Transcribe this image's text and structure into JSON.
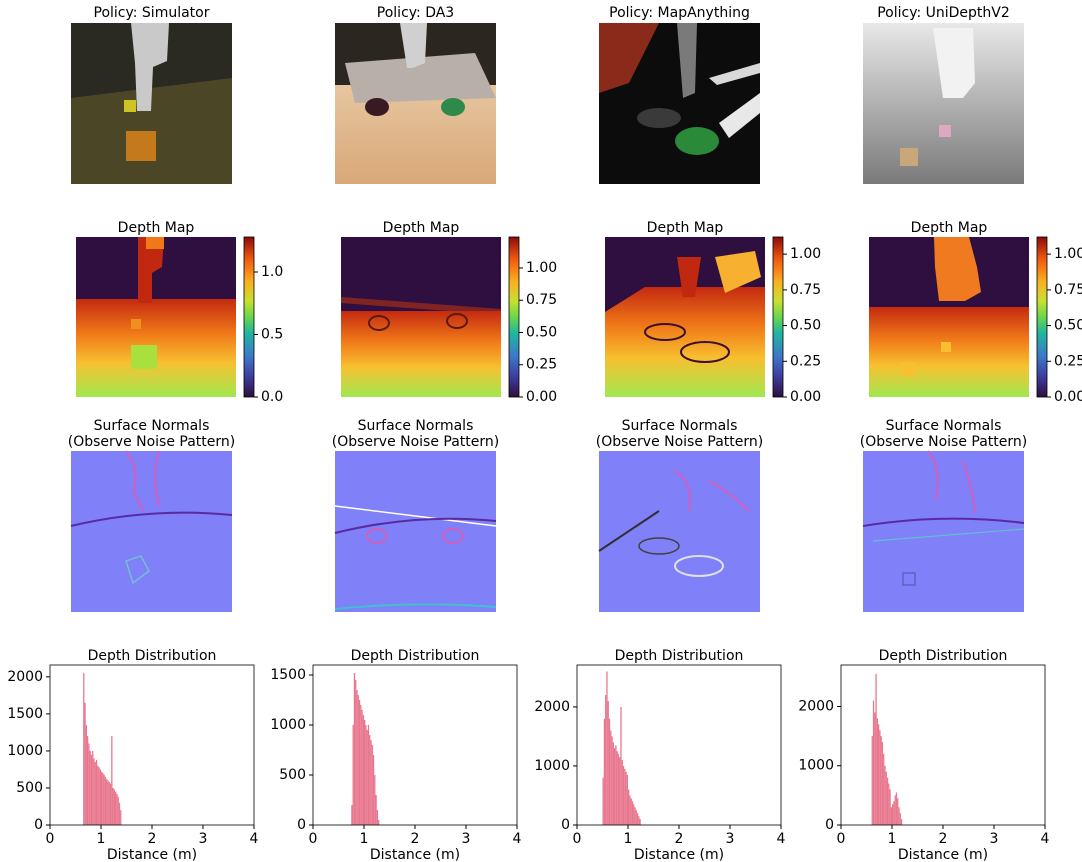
{
  "panels": [
    {
      "photo_title": "Policy: Simulator",
      "depth_title": "Depth Map",
      "normals_title": "Surface Normals",
      "normals_subtitle": "(Observe Noise Pattern)",
      "colorbar": {
        "lim": [
          0,
          1.28
        ],
        "ticks": [
          {
            "value": 0,
            "label": "0.0"
          },
          {
            "value": 0.5,
            "label": "0.5"
          },
          {
            "value": 1,
            "label": "1.0"
          }
        ]
      }
    },
    {
      "photo_title": "Policy: DA3",
      "depth_title": "Depth Map",
      "normals_title": "Surface Normals",
      "normals_subtitle": "(Observe Noise Pattern)",
      "colorbar": {
        "lim": [
          0,
          1.24
        ],
        "ticks": [
          {
            "value": 0,
            "label": "0.00"
          },
          {
            "value": 0.25,
            "label": "0.25"
          },
          {
            "value": 0.5,
            "label": "0.50"
          },
          {
            "value": 0.75,
            "label": "0.75"
          },
          {
            "value": 1,
            "label": "1.00"
          }
        ]
      }
    },
    {
      "photo_title": "Policy: MapAnything",
      "depth_title": "Depth Map",
      "normals_title": "Surface Normals",
      "normals_subtitle": "(Observe Noise Pattern)",
      "colorbar": {
        "lim": [
          0,
          1.12
        ],
        "ticks": [
          {
            "value": 0,
            "label": "0.00"
          },
          {
            "value": 0.25,
            "label": "0.25"
          },
          {
            "value": 0.5,
            "label": "0.50"
          },
          {
            "value": 0.75,
            "label": "0.75"
          },
          {
            "value": 1,
            "label": "1.00"
          }
        ]
      }
    },
    {
      "photo_title": "Policy: UniDepthV2",
      "depth_title": "Depth Map",
      "normals_title": "Surface Normals",
      "normals_subtitle": "(Observe Noise Pattern)",
      "colorbar": {
        "lim": [
          0,
          1.12
        ],
        "ticks": [
          {
            "value": 0,
            "label": "0.00"
          },
          {
            "value": 0.25,
            "label": "0.25"
          },
          {
            "value": 0.5,
            "label": "0.50"
          },
          {
            "value": 0.75,
            "label": "0.75"
          },
          {
            "value": 1,
            "label": "1.00"
          }
        ]
      }
    }
  ],
  "chart_data": [
    {
      "type": "histogram",
      "title": "Depth Distribution",
      "x_label": "Distance (m)",
      "color": "#e8768d",
      "bins": [
        0.65,
        0.675,
        0.7,
        0.725,
        0.75,
        0.775,
        0.8,
        0.825,
        0.85,
        0.875,
        0.9,
        0.925,
        0.95,
        0.975,
        1.0,
        1.025,
        1.05,
        1.075,
        1.1,
        1.125,
        1.15,
        1.175,
        1.2,
        1.225,
        1.25,
        1.275,
        1.3,
        1.325,
        1.35,
        1.375,
        1.4
      ],
      "values": [
        2050,
        1650,
        1350,
        1200,
        1100,
        1000,
        950,
        1000,
        900,
        850,
        880,
        800,
        780,
        750,
        720,
        700,
        680,
        650,
        620,
        600,
        580,
        560,
        1200,
        500,
        480,
        450,
        420,
        380,
        300,
        200
      ],
      "xlim": [
        0,
        4
      ],
      "xticks": [
        0,
        1,
        2,
        3,
        4
      ],
      "ylim": [
        0,
        2160
      ],
      "yticks": [
        0,
        500,
        1000,
        1500,
        2000
      ]
    },
    {
      "type": "histogram",
      "title": "Depth Distribution",
      "x_label": "Distance (m)",
      "color": "#e8768d",
      "bins": [
        0.75,
        0.775,
        0.8,
        0.825,
        0.85,
        0.875,
        0.9,
        0.925,
        0.95,
        0.975,
        1.0,
        1.025,
        1.05,
        1.075,
        1.1,
        1.125,
        1.15,
        1.175,
        1.2,
        1.225,
        1.25,
        1.275,
        1.3
      ],
      "values": [
        200,
        1000,
        1520,
        1450,
        1350,
        1300,
        1250,
        1200,
        1150,
        1100,
        1050,
        1000,
        950,
        1000,
        900,
        850,
        800,
        700,
        500,
        300,
        150,
        50
      ],
      "xlim": [
        0,
        4
      ],
      "xticks": [
        0,
        1,
        2,
        3,
        4
      ],
      "ylim": [
        0,
        1600
      ],
      "yticks": [
        0,
        500,
        1000,
        1500
      ]
    },
    {
      "type": "histogram",
      "title": "Depth Distribution",
      "x_label": "Distance (m)",
      "color": "#e8768d",
      "bins": [
        0.5,
        0.525,
        0.55,
        0.575,
        0.6,
        0.625,
        0.65,
        0.675,
        0.7,
        0.725,
        0.75,
        0.775,
        0.8,
        0.825,
        0.85,
        0.875,
        0.9,
        0.925,
        0.95,
        0.975,
        1.0,
        1.025,
        1.05,
        1.075,
        1.1,
        1.125,
        1.15,
        1.175,
        1.2,
        1.225,
        1.25
      ],
      "values": [
        800,
        1800,
        2200,
        2600,
        2100,
        1800,
        1600,
        1500,
        1400,
        1300,
        1350,
        1250,
        1200,
        1150,
        2000,
        1100,
        1000,
        950,
        900,
        850,
        600,
        500,
        450,
        400,
        350,
        300,
        250,
        200,
        150,
        100
      ],
      "xlim": [
        0,
        4
      ],
      "xticks": [
        0,
        1,
        2,
        3,
        4
      ],
      "ylim": [
        0,
        2710
      ],
      "yticks": [
        0,
        1000,
        2000
      ]
    },
    {
      "type": "histogram",
      "title": "Depth Distribution",
      "x_label": "Distance (m)",
      "color": "#e8768d",
      "bins": [
        0.6,
        0.625,
        0.65,
        0.675,
        0.7,
        0.725,
        0.75,
        0.775,
        0.8,
        0.825,
        0.85,
        0.875,
        0.9,
        0.925,
        0.95,
        0.975,
        1.0,
        1.025,
        1.05,
        1.075,
        1.1,
        1.125,
        1.15,
        1.175,
        1.2
      ],
      "values": [
        1500,
        2100,
        1900,
        2550,
        1800,
        1700,
        1600,
        1500,
        1400,
        1200,
        1000,
        900,
        800,
        700,
        600,
        300,
        350,
        400,
        500,
        550,
        450,
        300,
        200,
        100
      ],
      "xlim": [
        0,
        4
      ],
      "xticks": [
        0,
        1,
        2,
        3,
        4
      ],
      "ylim": [
        0,
        2700
      ],
      "yticks": [
        0,
        1000,
        2000
      ]
    }
  ]
}
